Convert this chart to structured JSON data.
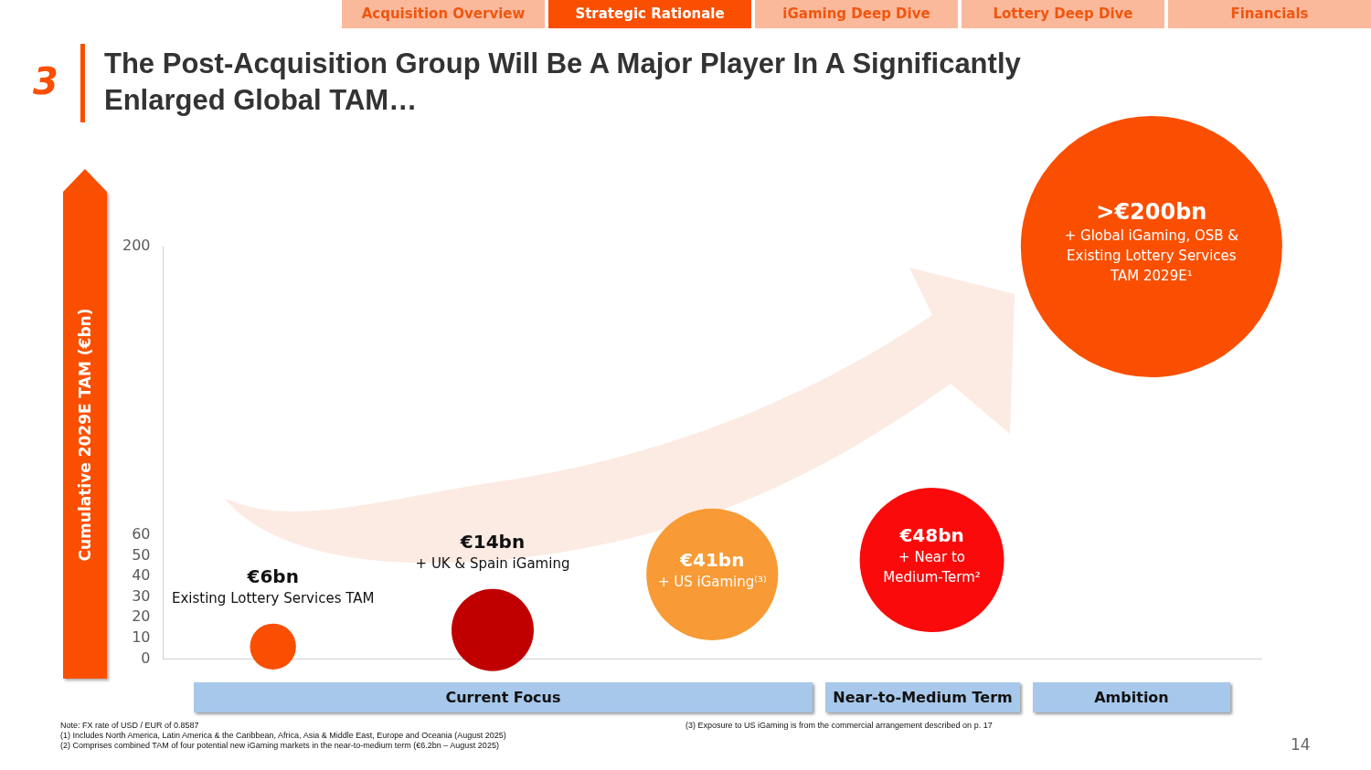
{
  "chart_data": {
    "type": "bubble",
    "title": "The Post-Acquisition Group Will Be A Major Player In A Significantly Enlarged Global TAM…",
    "ylabel": "Cumulative 2029E TAM (€bn)",
    "categories": [
      null,
      null,
      null,
      null,
      null
    ],
    "values": [
      6,
      14,
      41,
      48,
      200
    ],
    "sizes": [
      0.031,
      0.099,
      0.254,
      0.305,
      1
    ],
    "colors": [
      "#fa4f00",
      "#c00000",
      "#f89a35",
      "#fa0a0a",
      "#fa4f00"
    ],
    "value_labels": [
      "€6bn\nExisting Lottery Services TAM",
      "€14bn\n+ UK & Spain iGaming",
      "€41bn\n+ US iGaming⁽³⁾",
      "€48bn\n+ Near to\nMedium-Term²",
      ">€200bn\n+ Global iGaming, OSB &\nExisting Lottery Services\nTAM 2029E¹"
    ],
    "ylim": [
      0,
      200
    ],
    "yticks": [
      0,
      10,
      20,
      30,
      40,
      50,
      60,
      200
    ],
    "tick_labels": "y",
    "grid": false,
    "legend": false,
    "annotations": [
      "Acquisition Overview",
      "Strategic Rationale",
      "iGaming Deep Dive",
      "Lottery Deep Dive",
      "Financials",
      "3",
      "Current Focus",
      "Near-to-Medium Term",
      "Ambition",
      "Note: FX rate of USD / EUR of 0.8587",
      "(1) Includes North America, Latin America & the Caribbean, Africa, Asia & Middle East, Europe and Oceania (August 2025)",
      "(2) Comprises combined TAM of four potential new iGaming markets in the near-to-medium term (€6.2bn – August 2025)",
      "(3) Exposure to US iGaming is from the commercial arrangement described on p. 17",
      "14"
    ]
  }
}
